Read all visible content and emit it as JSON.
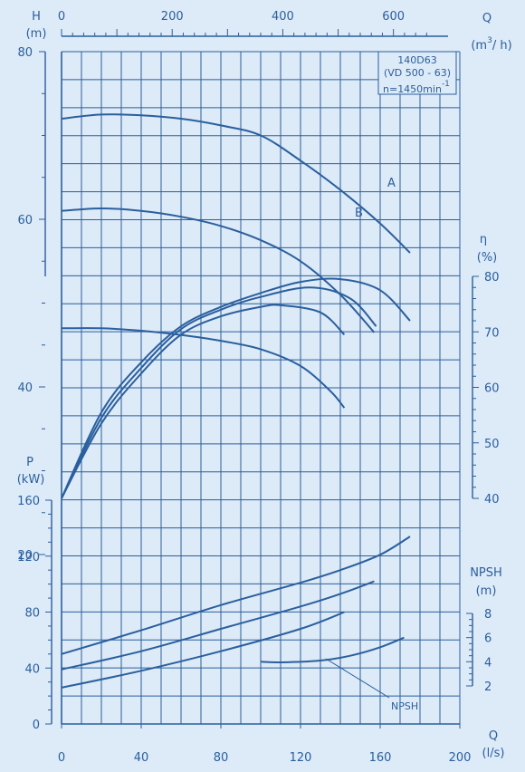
{
  "chart_data": {
    "type": "line",
    "colors": {
      "background": "#ddeaf7",
      "ink": "#2a5f9e"
    },
    "model": {
      "line1": "140D63",
      "line2": "(VD 500 - 63)",
      "line3": "n=1450min",
      "exponent": "-1"
    },
    "grid": true,
    "x_bottom": {
      "label": "Q",
      "unit": "(l/s)",
      "range": [
        0,
        200
      ],
      "ticks": [
        "0",
        "40",
        "80",
        "120",
        "160",
        "200"
      ]
    },
    "x_top": {
      "label": "Q",
      "unit": "(m³/h)",
      "unit_base": "(m",
      "unit_exp": "3",
      "unit_rest": "/ h)",
      "range": [
        0,
        720
      ],
      "ticks": [
        "0",
        "200",
        "400",
        "600"
      ]
    },
    "head_axis": {
      "label": "H",
      "unit": "(m)",
      "range": [
        0,
        80
      ],
      "ticks": [
        "20",
        "40",
        "60",
        "80"
      ]
    },
    "eff_axis": {
      "label": "η",
      "unit": "(%)",
      "range": [
        40,
        80
      ],
      "ticks": [
        "40",
        "50",
        "60",
        "70",
        "80"
      ]
    },
    "power_axis": {
      "label": "P",
      "unit": "(kW)",
      "range": [
        0,
        160
      ],
      "ticks": [
        "0",
        "40",
        "80",
        "120",
        "160"
      ]
    },
    "npsh_axis": {
      "label": "NPSH",
      "unit": "(m)",
      "range": [
        2,
        8
      ],
      "ticks": [
        "2",
        "4",
        "6",
        "8"
      ]
    },
    "head_curves": [
      {
        "label": "",
        "points": [
          [
            0,
            72
          ],
          [
            20,
            72.5
          ],
          [
            40,
            72.4
          ],
          [
            60,
            72
          ],
          [
            80,
            71.2
          ],
          [
            100,
            70
          ],
          [
            120,
            67
          ],
          [
            140,
            63.5
          ],
          [
            160,
            59.5
          ],
          [
            175,
            56
          ]
        ]
      },
      {
        "label": "A",
        "points": [
          [
            0,
            61
          ],
          [
            20,
            61.3
          ],
          [
            40,
            61
          ],
          [
            60,
            60.3
          ],
          [
            80,
            59.2
          ],
          [
            100,
            57.5
          ],
          [
            120,
            55
          ],
          [
            140,
            51
          ],
          [
            157,
            46.5
          ]
        ]
      },
      {
        "label": "B",
        "points": [
          [
            0,
            47
          ],
          [
            20,
            47
          ],
          [
            40,
            46.7
          ],
          [
            60,
            46.2
          ],
          [
            80,
            45.5
          ],
          [
            100,
            44.5
          ],
          [
            120,
            42.5
          ],
          [
            135,
            39.5
          ],
          [
            142,
            37.5
          ]
        ]
      }
    ],
    "efficiency_curves": [
      {
        "label": "",
        "points": [
          [
            0,
            40
          ],
          [
            20,
            55.5
          ],
          [
            40,
            64.5
          ],
          [
            60,
            71
          ],
          [
            80,
            74.5
          ],
          [
            100,
            77
          ],
          [
            120,
            79
          ],
          [
            140,
            79.5
          ],
          [
            160,
            77.5
          ],
          [
            175,
            72
          ]
        ]
      },
      {
        "label": "A",
        "points": [
          [
            0,
            40
          ],
          [
            20,
            54.5
          ],
          [
            40,
            63.5
          ],
          [
            60,
            70.5
          ],
          [
            80,
            74
          ],
          [
            100,
            76.3
          ],
          [
            125,
            78
          ],
          [
            145,
            76
          ],
          [
            158,
            71
          ]
        ]
      },
      {
        "label": "B",
        "points": [
          [
            0,
            40
          ],
          [
            20,
            53.5
          ],
          [
            40,
            62.5
          ],
          [
            60,
            69.5
          ],
          [
            80,
            72.8
          ],
          [
            100,
            74.5
          ],
          [
            110,
            74.8
          ],
          [
            130,
            73.5
          ],
          [
            142,
            69.5
          ]
        ]
      }
    ],
    "power_curves": [
      {
        "label": "",
        "points": [
          [
            0,
            50
          ],
          [
            40,
            67
          ],
          [
            80,
            85
          ],
          [
            120,
            101
          ],
          [
            140,
            110
          ],
          [
            160,
            121
          ],
          [
            175,
            134
          ]
        ]
      },
      {
        "label": "A",
        "points": [
          [
            0,
            39
          ],
          [
            40,
            52
          ],
          [
            80,
            68
          ],
          [
            120,
            84
          ],
          [
            140,
            93
          ],
          [
            157,
            102
          ]
        ]
      },
      {
        "label": "B",
        "points": [
          [
            0,
            26
          ],
          [
            40,
            38
          ],
          [
            80,
            52
          ],
          [
            120,
            68
          ],
          [
            142,
            80
          ]
        ]
      }
    ],
    "npsh_curve": {
      "label": "NPSH",
      "points": [
        [
          100,
          4.0
        ],
        [
          110,
          3.95
        ],
        [
          130,
          4.1
        ],
        [
          145,
          4.5
        ],
        [
          160,
          5.2
        ],
        [
          172,
          6.0
        ]
      ]
    },
    "annotations": [
      {
        "text": "A",
        "near_series": "head A"
      },
      {
        "text": "B",
        "near_series": "head B"
      },
      {
        "text": "NPSH",
        "near_series": "npsh"
      }
    ]
  }
}
